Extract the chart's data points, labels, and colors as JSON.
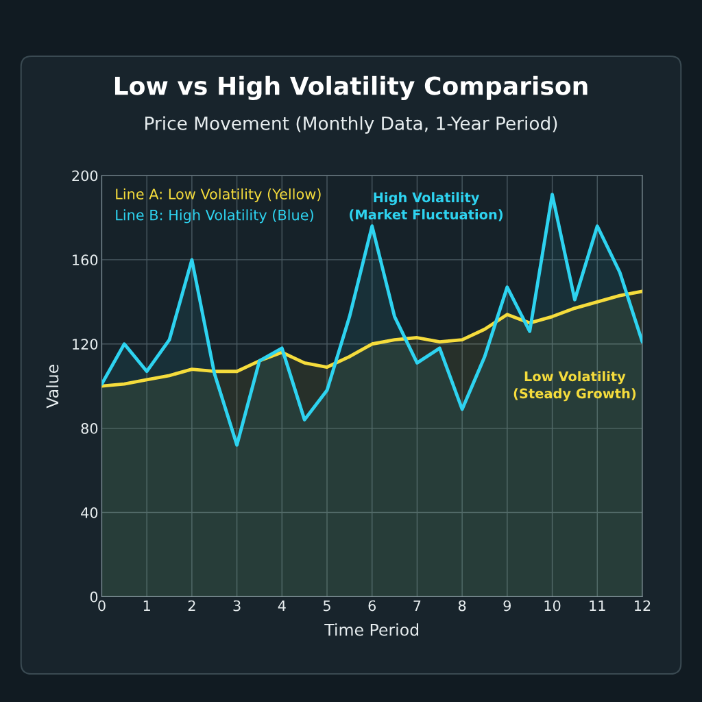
{
  "chart_data": {
    "type": "area",
    "title": "Low vs High Volatility Comparison",
    "subtitle": "Price Movement (Monthly Data, 1-Year Period)",
    "xlabel": "Time Period",
    "ylabel": "Value",
    "x": [
      0,
      0.5,
      1,
      1.5,
      2,
      2.5,
      3,
      3.5,
      4,
      4.5,
      5,
      5.5,
      6,
      6.5,
      7,
      7.5,
      8,
      8.5,
      9,
      9.5,
      10,
      10.5,
      11,
      11.5,
      12
    ],
    "series": [
      {
        "name": "Line A: Low Volatility (Yellow)",
        "color": "#f5dc3c",
        "values": [
          100,
          101,
          103,
          105,
          108,
          107,
          107,
          112,
          116,
          111,
          109,
          114,
          120,
          122,
          123,
          121,
          122,
          127,
          134,
          130,
          133,
          137,
          140,
          143,
          145
        ]
      },
      {
        "name": "Line B: High Volatility (Blue)",
        "color": "#2ed3f0",
        "values": [
          101,
          120,
          107,
          122,
          160,
          106,
          72,
          112,
          118,
          84,
          98,
          133,
          176,
          133,
          111,
          118,
          89,
          114,
          147,
          126,
          191,
          141,
          176,
          154,
          121
        ]
      }
    ],
    "annotations": [
      "High Volatility\n(Market Fluctuation)",
      "Low Volatility\n(Steady Growth)"
    ],
    "xlim": [
      0,
      12
    ],
    "xticks": [
      0,
      1,
      2,
      3,
      4,
      5,
      6,
      7,
      8,
      9,
      10,
      11,
      12
    ],
    "ylim": [
      0,
      200
    ],
    "yticks": [
      0,
      40,
      80,
      120,
      160,
      200
    ],
    "grid": true,
    "legend": "top left"
  }
}
